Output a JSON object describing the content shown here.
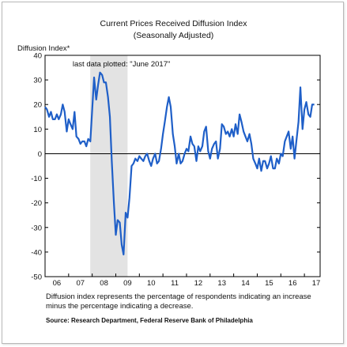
{
  "chart_data": {
    "type": "line",
    "title": "Current Prices Received Diffusion Index",
    "subtitle": "(Seasonally Adjusted)",
    "ylabel": "Diffusion Index*",
    "ylim": [
      -50,
      40
    ],
    "yticks": [
      -50,
      -40,
      -30,
      -20,
      -10,
      0,
      10,
      20,
      30,
      40
    ],
    "xlim": [
      2006.0,
      2017.6667
    ],
    "xticks": [
      {
        "label": "06",
        "x": 2006.5
      },
      {
        "label": "07",
        "x": 2007.5
      },
      {
        "label": "08",
        "x": 2008.5
      },
      {
        "label": "09",
        "x": 2009.5
      },
      {
        "label": "10",
        "x": 2010.5
      },
      {
        "label": "11",
        "x": 2011.5
      },
      {
        "label": "12",
        "x": 2012.5
      },
      {
        "label": "13",
        "x": 2013.5
      },
      {
        "label": "14",
        "x": 2014.5
      },
      {
        "label": "15",
        "x": 2015.5
      },
      {
        "label": "16",
        "x": 2016.5
      },
      {
        "label": "17",
        "x": 2017.5
      }
    ],
    "recession": [
      2007.9167,
      2009.5
    ],
    "annotation": "last data plotted: \"June 2017\"",
    "grid": false,
    "series": [
      {
        "color": "#1f5fc8",
        "points": [
          [
            2006.0,
            19
          ],
          [
            2006.08,
            18
          ],
          [
            2006.17,
            15
          ],
          [
            2006.25,
            17
          ],
          [
            2006.33,
            14
          ],
          [
            2006.42,
            14
          ],
          [
            2006.5,
            16
          ],
          [
            2006.58,
            14
          ],
          [
            2006.67,
            16
          ],
          [
            2006.75,
            20
          ],
          [
            2006.83,
            17
          ],
          [
            2006.92,
            9
          ],
          [
            2007.0,
            14
          ],
          [
            2007.08,
            12
          ],
          [
            2007.17,
            10
          ],
          [
            2007.25,
            17
          ],
          [
            2007.33,
            7
          ],
          [
            2007.42,
            6
          ],
          [
            2007.5,
            4
          ],
          [
            2007.58,
            5
          ],
          [
            2007.67,
            5
          ],
          [
            2007.75,
            3
          ],
          [
            2007.83,
            6
          ],
          [
            2007.92,
            5
          ],
          [
            2008.0,
            18
          ],
          [
            2008.08,
            31
          ],
          [
            2008.17,
            22
          ],
          [
            2008.25,
            28
          ],
          [
            2008.33,
            33
          ],
          [
            2008.42,
            32
          ],
          [
            2008.5,
            29
          ],
          [
            2008.58,
            29
          ],
          [
            2008.67,
            23
          ],
          [
            2008.75,
            15
          ],
          [
            2008.83,
            -3
          ],
          [
            2008.92,
            -20
          ],
          [
            2009.0,
            -33
          ],
          [
            2009.08,
            -27
          ],
          [
            2009.17,
            -28
          ],
          [
            2009.25,
            -37
          ],
          [
            2009.33,
            -41
          ],
          [
            2009.42,
            -24
          ],
          [
            2009.5,
            -26
          ],
          [
            2009.58,
            -18
          ],
          [
            2009.67,
            -5
          ],
          [
            2009.75,
            -4
          ],
          [
            2009.83,
            -2
          ],
          [
            2009.92,
            -3
          ],
          [
            2010.0,
            -1
          ],
          [
            2010.08,
            -2
          ],
          [
            2010.17,
            -3
          ],
          [
            2010.25,
            -1
          ],
          [
            2010.33,
            0
          ],
          [
            2010.42,
            -3
          ],
          [
            2010.5,
            -5
          ],
          [
            2010.58,
            -2
          ],
          [
            2010.67,
            0
          ],
          [
            2010.75,
            -4
          ],
          [
            2010.83,
            -3
          ],
          [
            2010.92,
            2
          ],
          [
            2011.0,
            8
          ],
          [
            2011.08,
            13
          ],
          [
            2011.17,
            19
          ],
          [
            2011.25,
            23
          ],
          [
            2011.33,
            19
          ],
          [
            2011.42,
            8
          ],
          [
            2011.5,
            3
          ],
          [
            2011.58,
            -4
          ],
          [
            2011.67,
            0
          ],
          [
            2011.75,
            -4
          ],
          [
            2011.83,
            -3
          ],
          [
            2011.92,
            0
          ],
          [
            2012.0,
            2
          ],
          [
            2012.08,
            1
          ],
          [
            2012.17,
            7
          ],
          [
            2012.25,
            4
          ],
          [
            2012.33,
            3
          ],
          [
            2012.42,
            -3
          ],
          [
            2012.5,
            3
          ],
          [
            2012.58,
            1
          ],
          [
            2012.67,
            3
          ],
          [
            2012.75,
            9
          ],
          [
            2012.83,
            11
          ],
          [
            2012.92,
            1
          ],
          [
            2013.0,
            -2
          ],
          [
            2013.08,
            2
          ],
          [
            2013.17,
            4
          ],
          [
            2013.25,
            5
          ],
          [
            2013.33,
            -2
          ],
          [
            2013.42,
            2
          ],
          [
            2013.5,
            12
          ],
          [
            2013.58,
            11
          ],
          [
            2013.67,
            8
          ],
          [
            2013.75,
            9
          ],
          [
            2013.83,
            7
          ],
          [
            2013.92,
            10
          ],
          [
            2014.0,
            7
          ],
          [
            2014.08,
            12
          ],
          [
            2014.17,
            8
          ],
          [
            2014.25,
            16
          ],
          [
            2014.33,
            13
          ],
          [
            2014.42,
            9
          ],
          [
            2014.5,
            7
          ],
          [
            2014.58,
            5
          ],
          [
            2014.67,
            8
          ],
          [
            2014.75,
            4
          ],
          [
            2014.83,
            -2
          ],
          [
            2014.92,
            -4
          ],
          [
            2015.0,
            -6
          ],
          [
            2015.08,
            -2
          ],
          [
            2015.17,
            -7
          ],
          [
            2015.25,
            -3
          ],
          [
            2015.33,
            -3
          ],
          [
            2015.42,
            -6
          ],
          [
            2015.5,
            -4
          ],
          [
            2015.58,
            -1
          ],
          [
            2015.67,
            -6
          ],
          [
            2015.75,
            -6
          ],
          [
            2015.83,
            -2
          ],
          [
            2015.92,
            -4
          ],
          [
            2016.0,
            0
          ],
          [
            2016.08,
            -1
          ],
          [
            2016.17,
            5
          ],
          [
            2016.25,
            7
          ],
          [
            2016.33,
            9
          ],
          [
            2016.42,
            2
          ],
          [
            2016.5,
            7
          ],
          [
            2016.58,
            -2
          ],
          [
            2016.67,
            6
          ],
          [
            2016.75,
            13
          ],
          [
            2016.83,
            27
          ],
          [
            2016.92,
            10
          ],
          [
            2017.0,
            18
          ],
          [
            2017.08,
            21
          ],
          [
            2017.17,
            16
          ],
          [
            2017.25,
            15
          ],
          [
            2017.33,
            20
          ],
          [
            2017.42,
            20
          ]
        ]
      }
    ]
  },
  "footnote": "Diffusion index represents the percentage of respondents indicating an increase minus the percentage indicating a decrease.",
  "source": "Source: Research Department, Federal Reserve Bank of Philadelphia"
}
